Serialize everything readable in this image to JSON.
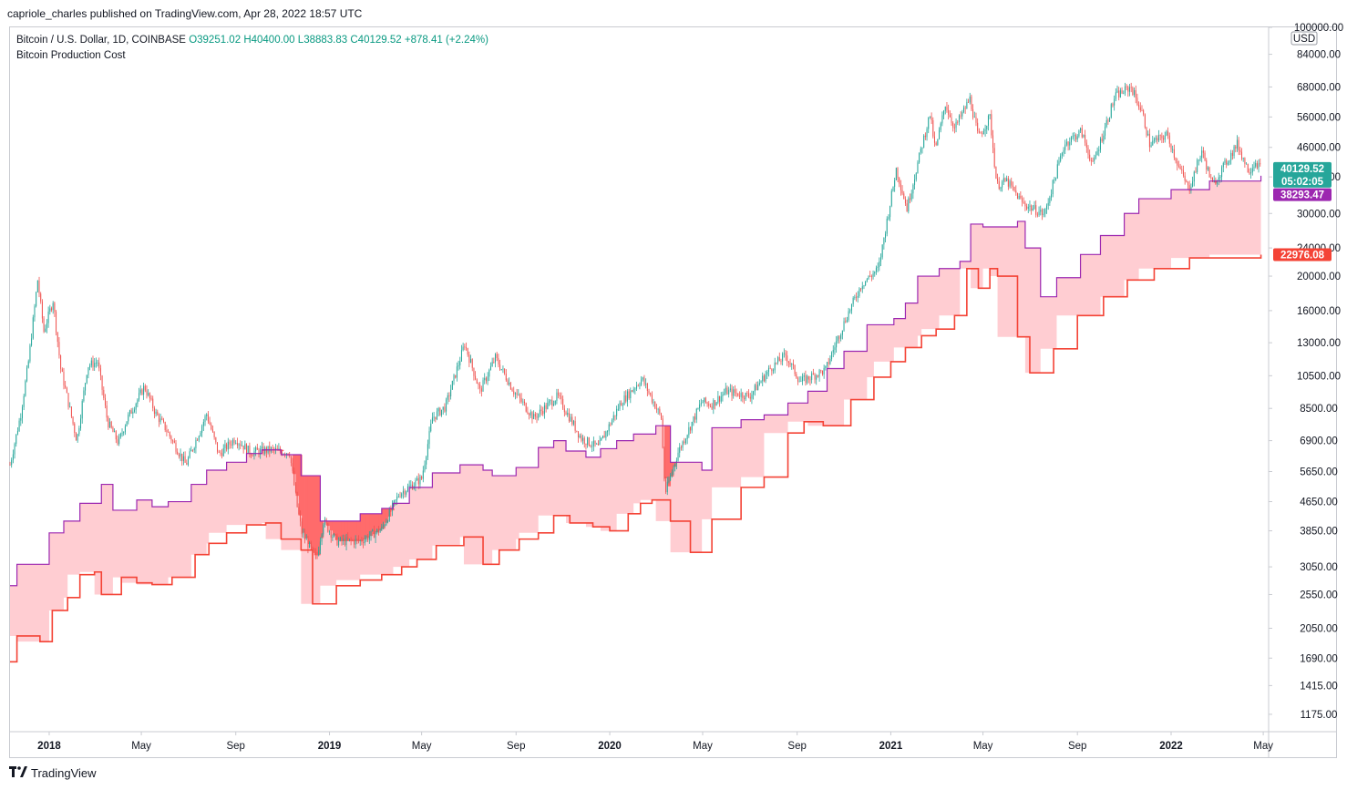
{
  "header": {
    "published_by": "capriole_charles published on TradingView.com, Apr 28, 2022 18:57 UTC"
  },
  "legend": {
    "symbol": "Bitcoin / U.S. Dollar, 1D, COINBASE",
    "open": "O39251.02",
    "high": "H40400.00",
    "low": "L38883.83",
    "close": "C40129.52",
    "change": "+878.41 (+2.24%)",
    "indicator": "Bitcoin Production Cost"
  },
  "footer": {
    "brand": "TradingView",
    "logo_icon": "tradingview-logo-icon"
  },
  "colors": {
    "up": "#26a69a",
    "down": "#ef5350",
    "band_fill": "#ffcdd2",
    "band_above": "#ff6b6b",
    "upper_line": "#9c27b0",
    "lower_line": "#f44336",
    "axis_border": "#c9cbd1"
  },
  "chart_data": {
    "type": "candlestick",
    "y_scale": "log",
    "y_axis_unit": "USD",
    "ylim": [
      1050,
      100000
    ],
    "y_ticks": [
      100000,
      84000,
      68000,
      56000,
      46000,
      38000,
      30000,
      24000,
      20000,
      16000,
      13000,
      10500,
      8500,
      6900,
      5650,
      4650,
      3850,
      3050,
      2550,
      2050,
      1690,
      1415,
      1175
    ],
    "y_tick_labels": [
      "100000.00",
      "84000.00",
      "68000.00",
      "56000.00",
      "46000.00",
      "38000.00",
      "30000.00",
      "24000.00",
      "20000.00",
      "16000.00",
      "13000.00",
      "10500.00",
      "8500.00",
      "6900.00",
      "5650.00",
      "4650.00",
      "3850.00",
      "3050.00",
      "2550.00",
      "2050.00",
      "1690.00",
      "1415.00",
      "1175.00"
    ],
    "x_range": [
      "2017-11-11",
      "2022-05-08"
    ],
    "x_ticks": [
      {
        "date": "2018-01-01",
        "label": "2018",
        "bold": true
      },
      {
        "date": "2018-05-01",
        "label": "May",
        "bold": false
      },
      {
        "date": "2018-09-01",
        "label": "Sep",
        "bold": false
      },
      {
        "date": "2019-01-01",
        "label": "2019",
        "bold": true
      },
      {
        "date": "2019-05-01",
        "label": "May",
        "bold": false
      },
      {
        "date": "2019-09-01",
        "label": "Sep",
        "bold": false
      },
      {
        "date": "2020-01-01",
        "label": "2020",
        "bold": true
      },
      {
        "date": "2020-05-01",
        "label": "May",
        "bold": false
      },
      {
        "date": "2020-09-01",
        "label": "Sep",
        "bold": false
      },
      {
        "date": "2021-01-01",
        "label": "2021",
        "bold": true
      },
      {
        "date": "2021-05-01",
        "label": "May",
        "bold": false
      },
      {
        "date": "2021-09-01",
        "label": "Sep",
        "bold": false
      },
      {
        "date": "2022-01-01",
        "label": "2022",
        "bold": true
      },
      {
        "date": "2022-05-01",
        "label": "May",
        "bold": false
      }
    ],
    "price_series": {
      "name": "BTCUSD",
      "points": [
        [
          "2017-11-11",
          5900
        ],
        [
          "2017-11-25",
          8200
        ],
        [
          "2017-12-05",
          11500
        ],
        [
          "2017-12-17",
          19500
        ],
        [
          "2017-12-25",
          14000
        ],
        [
          "2018-01-06",
          17100
        ],
        [
          "2018-01-16",
          11000
        ],
        [
          "2018-02-06",
          6900
        ],
        [
          "2018-02-20",
          11200
        ],
        [
          "2018-03-05",
          11500
        ],
        [
          "2018-03-18",
          7800
        ],
        [
          "2018-04-01",
          6800
        ],
        [
          "2018-04-12",
          7900
        ],
        [
          "2018-05-05",
          9800
        ],
        [
          "2018-05-20",
          8200
        ],
        [
          "2018-06-01",
          7500
        ],
        [
          "2018-06-28",
          5900
        ],
        [
          "2018-07-25",
          8200
        ],
        [
          "2018-08-10",
          6300
        ],
        [
          "2018-08-31",
          7000
        ],
        [
          "2018-09-20",
          6400
        ],
        [
          "2018-10-15",
          6500
        ],
        [
          "2018-11-10",
          6400
        ],
        [
          "2018-11-20",
          4500
        ],
        [
          "2018-11-26",
          3800
        ],
        [
          "2018-12-15",
          3200
        ],
        [
          "2018-12-24",
          4100
        ],
        [
          "2019-01-10",
          3600
        ],
        [
          "2019-02-10",
          3600
        ],
        [
          "2019-03-10",
          3900
        ],
        [
          "2019-04-02",
          4900
        ],
        [
          "2019-05-01",
          5400
        ],
        [
          "2019-05-15",
          8000
        ],
        [
          "2019-06-01",
          8600
        ],
        [
          "2019-06-26",
          12900
        ],
        [
          "2019-07-16",
          9500
        ],
        [
          "2019-08-05",
          11800
        ],
        [
          "2019-08-29",
          9500
        ],
        [
          "2019-09-24",
          8000
        ],
        [
          "2019-10-25",
          9200
        ],
        [
          "2019-11-25",
          7000
        ],
        [
          "2019-12-17",
          6600
        ],
        [
          "2020-01-15",
          8800
        ],
        [
          "2020-02-12",
          10300
        ],
        [
          "2020-03-08",
          8000
        ],
        [
          "2020-03-13",
          4900
        ],
        [
          "2020-03-30",
          6400
        ],
        [
          "2020-04-30",
          8900
        ],
        [
          "2020-05-12",
          8700
        ],
        [
          "2020-06-01",
          9500
        ],
        [
          "2020-07-01",
          9200
        ],
        [
          "2020-07-28",
          11000
        ],
        [
          "2020-08-17",
          12000
        ],
        [
          "2020-09-05",
          10100
        ],
        [
          "2020-10-08",
          10900
        ],
        [
          "2020-10-21",
          12900
        ],
        [
          "2020-11-05",
          15500
        ],
        [
          "2020-11-24",
          19000
        ],
        [
          "2020-12-16",
          21000
        ],
        [
          "2021-01-08",
          40000
        ],
        [
          "2021-01-22",
          31000
        ],
        [
          "2021-02-10",
          46000
        ],
        [
          "2021-02-21",
          57000
        ],
        [
          "2021-02-28",
          45000
        ],
        [
          "2021-03-13",
          61000
        ],
        [
          "2021-03-25",
          52000
        ],
        [
          "2021-04-14",
          63000
        ],
        [
          "2021-04-25",
          49000
        ],
        [
          "2021-05-10",
          56000
        ],
        [
          "2021-05-19",
          36000
        ],
        [
          "2021-06-01",
          37000
        ],
        [
          "2021-06-22",
          32000
        ],
        [
          "2021-07-20",
          29800
        ],
        [
          "2021-08-15",
          47000
        ],
        [
          "2021-09-06",
          51000
        ],
        [
          "2021-09-21",
          41000
        ],
        [
          "2021-10-20",
          64000
        ],
        [
          "2021-11-10",
          68000
        ],
        [
          "2021-11-25",
          57000
        ],
        [
          "2021-12-04",
          47000
        ],
        [
          "2021-12-27",
          50000
        ],
        [
          "2022-01-10",
          41000
        ],
        [
          "2022-01-24",
          35000
        ],
        [
          "2022-02-10",
          45000
        ],
        [
          "2022-02-24",
          36000
        ],
        [
          "2022-03-28",
          47000
        ],
        [
          "2022-04-12",
          39500
        ],
        [
          "2022-04-21",
          42000
        ],
        [
          "2022-04-28",
          40129.52
        ]
      ]
    },
    "upper_cost": {
      "points": [
        [
          "2017-11-11",
          2700
        ],
        [
          "2017-11-20",
          3100
        ],
        [
          "2017-12-20",
          3100
        ],
        [
          "2018-01-01",
          3800
        ],
        [
          "2018-01-20",
          4100
        ],
        [
          "2018-02-10",
          4600
        ],
        [
          "2018-03-01",
          4600
        ],
        [
          "2018-03-10",
          5200
        ],
        [
          "2018-03-25",
          4400
        ],
        [
          "2018-04-25",
          4700
        ],
        [
          "2018-05-15",
          4500
        ],
        [
          "2018-06-05",
          4650
        ],
        [
          "2018-07-05",
          5200
        ],
        [
          "2018-07-25",
          5700
        ],
        [
          "2018-08-20",
          6000
        ],
        [
          "2018-09-15",
          6350
        ],
        [
          "2018-10-05",
          6500
        ],
        [
          "2018-10-30",
          6300
        ],
        [
          "2018-11-25",
          5500
        ],
        [
          "2018-12-20",
          4100
        ],
        [
          "2019-02-10",
          4300
        ],
        [
          "2019-03-10",
          4450
        ],
        [
          "2019-03-25",
          4600
        ],
        [
          "2019-04-15",
          5100
        ],
        [
          "2019-05-15",
          5600
        ],
        [
          "2019-06-20",
          5900
        ],
        [
          "2019-07-20",
          5700
        ],
        [
          "2019-08-01",
          5500
        ],
        [
          "2019-09-01",
          5800
        ],
        [
          "2019-09-30",
          6600
        ],
        [
          "2019-10-20",
          6900
        ],
        [
          "2019-11-05",
          6450
        ],
        [
          "2019-12-01",
          6200
        ],
        [
          "2019-12-20",
          6550
        ],
        [
          "2020-01-10",
          6900
        ],
        [
          "2020-02-01",
          7200
        ],
        [
          "2020-03-01",
          7600
        ],
        [
          "2020-03-20",
          6000
        ],
        [
          "2020-04-30",
          5700
        ],
        [
          "2020-05-13",
          7500
        ],
        [
          "2020-06-20",
          7900
        ],
        [
          "2020-07-20",
          8150
        ],
        [
          "2020-08-20",
          8800
        ],
        [
          "2020-09-15",
          9500
        ],
        [
          "2020-10-10",
          11000
        ],
        [
          "2020-11-01",
          12300
        ],
        [
          "2020-12-01",
          14600
        ],
        [
          "2021-01-05",
          15200
        ],
        [
          "2021-01-20",
          16800
        ],
        [
          "2021-02-05",
          20000
        ],
        [
          "2021-03-05",
          21000
        ],
        [
          "2021-04-01",
          22000
        ],
        [
          "2021-04-15",
          28000
        ],
        [
          "2021-05-01",
          27500
        ],
        [
          "2021-06-15",
          28500
        ],
        [
          "2021-06-25",
          24000
        ],
        [
          "2021-07-15",
          17500
        ],
        [
          "2021-08-05",
          19800
        ],
        [
          "2021-09-05",
          23000
        ],
        [
          "2021-10-01",
          26000
        ],
        [
          "2021-11-01",
          30000
        ],
        [
          "2021-11-20",
          33000
        ],
        [
          "2022-01-01",
          35000
        ],
        [
          "2022-02-20",
          37000
        ],
        [
          "2022-04-28",
          38293.47
        ]
      ],
      "last_label": "38293.47"
    },
    "lower_cost": {
      "points": [
        [
          "2017-11-11",
          1650
        ],
        [
          "2017-11-20",
          1950
        ],
        [
          "2017-12-20",
          1880
        ],
        [
          "2018-01-05",
          2300
        ],
        [
          "2018-01-25",
          2500
        ],
        [
          "2018-02-10",
          2900
        ],
        [
          "2018-03-01",
          2950
        ],
        [
          "2018-03-10",
          2550
        ],
        [
          "2018-04-05",
          2850
        ],
        [
          "2018-04-25",
          2750
        ],
        [
          "2018-05-15",
          2720
        ],
        [
          "2018-06-10",
          2850
        ],
        [
          "2018-07-10",
          3300
        ],
        [
          "2018-07-28",
          3550
        ],
        [
          "2018-08-20",
          3800
        ],
        [
          "2018-09-15",
          4000
        ],
        [
          "2018-10-10",
          4050
        ],
        [
          "2018-10-30",
          3650
        ],
        [
          "2018-11-25",
          3400
        ],
        [
          "2018-12-10",
          2400
        ],
        [
          "2019-01-10",
          2700
        ],
        [
          "2019-02-10",
          2800
        ],
        [
          "2019-03-10",
          2900
        ],
        [
          "2019-04-05",
          3050
        ],
        [
          "2019-04-25",
          3200
        ],
        [
          "2019-05-20",
          3500
        ],
        [
          "2019-06-25",
          3700
        ],
        [
          "2019-07-20",
          3100
        ],
        [
          "2019-08-10",
          3400
        ],
        [
          "2019-09-05",
          3650
        ],
        [
          "2019-09-30",
          3800
        ],
        [
          "2019-10-20",
          4250
        ],
        [
          "2019-11-10",
          4050
        ],
        [
          "2019-12-10",
          3950
        ],
        [
          "2020-01-01",
          3850
        ],
        [
          "2020-01-25",
          4300
        ],
        [
          "2020-02-10",
          4600
        ],
        [
          "2020-02-25",
          4700
        ],
        [
          "2020-03-20",
          4100
        ],
        [
          "2020-04-15",
          3350
        ],
        [
          "2020-05-13",
          4150
        ],
        [
          "2020-06-20",
          5100
        ],
        [
          "2020-07-20",
          5450
        ],
        [
          "2020-08-20",
          7250
        ],
        [
          "2020-09-10",
          7800
        ],
        [
          "2020-10-05",
          7600
        ],
        [
          "2020-11-10",
          9000
        ],
        [
          "2020-12-10",
          10400
        ],
        [
          "2021-01-01",
          11500
        ],
        [
          "2021-01-20",
          12600
        ],
        [
          "2021-02-10",
          13600
        ],
        [
          "2021-03-01",
          14200
        ],
        [
          "2021-03-25",
          15500
        ],
        [
          "2021-04-10",
          21000
        ],
        [
          "2021-04-25",
          18500
        ],
        [
          "2021-05-10",
          21000
        ],
        [
          "2021-05-20",
          20000
        ],
        [
          "2021-06-15",
          13500
        ],
        [
          "2021-07-01",
          10700
        ],
        [
          "2021-08-01",
          12500
        ],
        [
          "2021-09-01",
          15500
        ],
        [
          "2021-10-05",
          17500
        ],
        [
          "2021-11-05",
          19500
        ],
        [
          "2021-12-10",
          21000
        ],
        [
          "2022-01-25",
          22500
        ],
        [
          "2022-04-28",
          22976.08
        ]
      ],
      "last_label": "22976.08"
    },
    "last_price_label": "40129.52",
    "countdown_label": "05:02:05"
  }
}
